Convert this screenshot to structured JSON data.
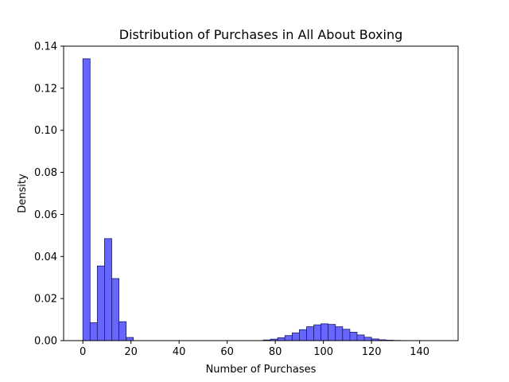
{
  "chart_data": {
    "type": "bar",
    "title": "Distribution of Purchases in All About Boxing",
    "xlabel": "Number of Purchases",
    "ylabel": "Density",
    "xlim": [
      -8,
      156
    ],
    "ylim": [
      0,
      0.14
    ],
    "xticks": [
      0,
      20,
      40,
      60,
      80,
      100,
      120,
      140
    ],
    "yticks": [
      0.0,
      0.02,
      0.04,
      0.06,
      0.08,
      0.1,
      0.12,
      0.14
    ],
    "ytick_labels": [
      "0.00",
      "0.02",
      "0.04",
      "0.06",
      "0.08",
      "0.10",
      "0.12",
      "0.14"
    ],
    "grid": false,
    "bar_color": "#6666ff",
    "edge_color": "#1a1a66",
    "bin_width": 3,
    "bins": [
      {
        "x0": 0,
        "value": 0.134
      },
      {
        "x0": 3,
        "value": 0.0085
      },
      {
        "x0": 6,
        "value": 0.0355
      },
      {
        "x0": 9,
        "value": 0.0485
      },
      {
        "x0": 12,
        "value": 0.0295
      },
      {
        "x0": 15,
        "value": 0.009
      },
      {
        "x0": 18,
        "value": 0.0015
      },
      {
        "x0": 75,
        "value": 0.0003
      },
      {
        "x0": 78,
        "value": 0.0007
      },
      {
        "x0": 81,
        "value": 0.0014
      },
      {
        "x0": 84,
        "value": 0.0024
      },
      {
        "x0": 87,
        "value": 0.0037
      },
      {
        "x0": 90,
        "value": 0.0052
      },
      {
        "x0": 93,
        "value": 0.0066
      },
      {
        "x0": 96,
        "value": 0.0075
      },
      {
        "x0": 99,
        "value": 0.008
      },
      {
        "x0": 102,
        "value": 0.0077
      },
      {
        "x0": 105,
        "value": 0.0066
      },
      {
        "x0": 108,
        "value": 0.0054
      },
      {
        "x0": 111,
        "value": 0.004
      },
      {
        "x0": 114,
        "value": 0.0027
      },
      {
        "x0": 117,
        "value": 0.0016
      },
      {
        "x0": 120,
        "value": 0.0008
      },
      {
        "x0": 123,
        "value": 0.0004
      },
      {
        "x0": 126,
        "value": 0.0002
      },
      {
        "x0": 129,
        "value": 0.0001
      },
      {
        "x0": 132,
        "value": 5e-05
      },
      {
        "x0": 135,
        "value": 3e-05
      },
      {
        "x0": 138,
        "value": 2e-05
      },
      {
        "x0": 141,
        "value": 1e-05
      },
      {
        "x0": 144,
        "value": 1e-05
      }
    ]
  }
}
